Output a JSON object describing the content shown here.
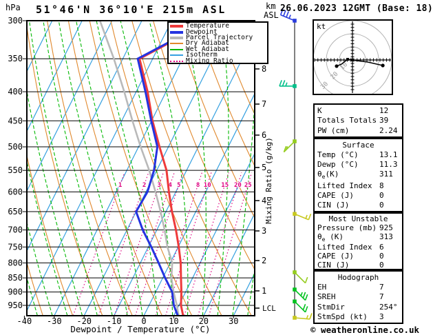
{
  "header": {
    "pressure_unit": "hPa",
    "title": "51°46'N 36°10'E 215m ASL",
    "alt_unit_line1": "km",
    "alt_unit_line2": "ASL",
    "date": "26.06.2023 12GMT (Base: 18)"
  },
  "colors": {
    "temperature": "#ee3a3a",
    "dewpoint": "#2433e0",
    "parcel": "#b9b9b9",
    "dry_adiabat": "#e0882c",
    "wet_adiabat": "#00b800",
    "isotherm": "#35a0e0",
    "mixing_ratio": "#dd0080",
    "grid": "#000000",
    "hodograph_rings": "#b0b0b0"
  },
  "legend": {
    "items": [
      {
        "label": "Temperature",
        "color": "#ee3a3a",
        "style": "thick"
      },
      {
        "label": "Dewpoint",
        "color": "#2433e0",
        "style": "thick"
      },
      {
        "label": "Parcel Trajectory",
        "color": "#b9b9b9",
        "style": "thick"
      },
      {
        "label": "Dry Adiabat",
        "color": "#e0882c",
        "style": "thin"
      },
      {
        "label": "Wet Adiabat",
        "color": "#00b800",
        "style": "thin"
      },
      {
        "label": "Isotherm",
        "color": "#35a0e0",
        "style": "thin"
      },
      {
        "label": "Mixing Ratio",
        "color": "#dd0080",
        "style": "dotted"
      }
    ]
  },
  "axes": {
    "pressure_ticks": [
      300,
      350,
      400,
      450,
      500,
      550,
      600,
      650,
      700,
      750,
      800,
      850,
      900,
      950
    ],
    "temp_ticks": [
      -40,
      -30,
      -20,
      -10,
      0,
      10,
      20,
      30
    ],
    "x_label": "Dewpoint / Temperature (°C)",
    "km_ticks": [
      8,
      7,
      6,
      5,
      4,
      3,
      2,
      1
    ],
    "lcl_label": "LCL",
    "mixing_ratio_axis_label": "Mixing Ratio (g/kg)"
  },
  "chart_data": {
    "type": "skewt-log-p",
    "title": "51°46'N 36°10'E 215m ASL",
    "pressure_range_hpa": [
      300,
      990
    ],
    "temp_axis_range_c": [
      -40,
      40
    ],
    "isotherm_step_c": 10,
    "mixing_ratio_lines_g_kg": [
      1,
      2,
      3,
      4,
      5,
      8,
      10,
      15,
      20,
      25
    ],
    "series": [
      {
        "name": "Temperature",
        "color": "#ee3a3a",
        "points_p_t": [
          [
            990,
            13.1
          ],
          [
            950,
            10.7
          ],
          [
            900,
            8.6
          ],
          [
            850,
            6.1
          ],
          [
            800,
            3.5
          ],
          [
            750,
            0.2
          ],
          [
            700,
            -3.6
          ],
          [
            650,
            -8.0
          ],
          [
            600,
            -12.3
          ],
          [
            550,
            -16.7
          ],
          [
            500,
            -23.0
          ],
          [
            450,
            -29.7
          ],
          [
            400,
            -36.2
          ],
          [
            350,
            -44.4
          ],
          [
            300,
            -26.8
          ]
        ]
      },
      {
        "name": "Dewpoint",
        "color": "#2433e0",
        "points_p_t": [
          [
            990,
            11.3
          ],
          [
            950,
            8.3
          ],
          [
            900,
            5.5
          ],
          [
            850,
            0.8
          ],
          [
            800,
            -3.9
          ],
          [
            750,
            -9.0
          ],
          [
            700,
            -14.7
          ],
          [
            650,
            -20.0
          ],
          [
            600,
            -19.5
          ],
          [
            550,
            -20.9
          ],
          [
            500,
            -23.7
          ],
          [
            450,
            -30.1
          ],
          [
            400,
            -36.9
          ],
          [
            350,
            -45.0
          ],
          [
            300,
            -27.3
          ]
        ]
      },
      {
        "name": "Parcel Trajectory",
        "color": "#b9b9b9",
        "points_p_t": [
          [
            990,
            11.6
          ],
          [
            950,
            9.3
          ],
          [
            900,
            6.0
          ],
          [
            850,
            2.9
          ],
          [
            800,
            0.7
          ],
          [
            750,
            -3.6
          ],
          [
            700,
            -7.4
          ],
          [
            650,
            -11.8
          ],
          [
            600,
            -16.8
          ],
          [
            550,
            -22.5
          ],
          [
            500,
            -29.3
          ],
          [
            450,
            -36.4
          ],
          [
            400,
            -44.0
          ],
          [
            350,
            -53.0
          ],
          [
            300,
            -64.0
          ]
        ]
      }
    ],
    "wind_barbs": [
      {
        "pressure": 300,
        "dir_deg": 292.5,
        "speed_kt": 35,
        "color": "#2a3cde"
      },
      {
        "pressure": 391,
        "dir_deg": 270.0,
        "speed_kt": 25,
        "color": "#00c08a"
      },
      {
        "pressure": 489,
        "dir_deg": 225.0,
        "speed_kt": 15,
        "color": "#95cc1e"
      },
      {
        "pressure": 656,
        "dir_deg": 112.5,
        "speed_kt": 15,
        "color": "#c8c81e"
      },
      {
        "pressure": 831,
        "dir_deg": 135.0,
        "speed_kt": 10,
        "color": "#95cc1e"
      },
      {
        "pressure": 891,
        "dir_deg": 135.0,
        "speed_kt": 25,
        "color": "#00c11e"
      },
      {
        "pressure": 935,
        "dir_deg": 135.0,
        "speed_kt": 20,
        "color": "#00c11e"
      },
      {
        "pressure": 1000,
        "dir_deg": 95.0,
        "speed_kt": 15,
        "color": "#c8c81e"
      }
    ]
  },
  "hodograph": {
    "unit": "kt",
    "rings_kt": [
      10,
      20,
      30
    ],
    "trace_kt_uv": [
      [
        23.2,
        -4.2
      ],
      [
        11.6,
        -1.6
      ],
      [
        3.2,
        -0.5
      ],
      [
        0,
        0
      ],
      [
        -3.7,
        0.5
      ],
      [
        -8.4,
        -3.2
      ],
      [
        -12.1,
        -4.7
      ]
    ]
  },
  "tables": [
    {
      "title": "",
      "rows": [
        [
          "K",
          "12"
        ],
        [
          "Totals Totals",
          "39"
        ],
        [
          "PW (cm)",
          "2.24"
        ]
      ]
    },
    {
      "title": "Surface",
      "rows": [
        [
          "Temp (°C)",
          "13.1"
        ],
        [
          "Dewp (°C)",
          "11.3"
        ],
        [
          "θe(K)",
          "311"
        ],
        [
          "Lifted Index",
          "8"
        ],
        [
          "CAPE (J)",
          "0"
        ],
        [
          "CIN (J)",
          "0"
        ]
      ]
    },
    {
      "title": "Most Unstable",
      "rows": [
        [
          "Pressure (mb)",
          "925"
        ],
        [
          "θe (K)",
          "313"
        ],
        [
          "Lifted Index",
          "6"
        ],
        [
          "CAPE (J)",
          "0"
        ],
        [
          "CIN (J)",
          "0"
        ]
      ]
    },
    {
      "title": "Hodograph",
      "rows": [
        [
          "EH",
          "7"
        ],
        [
          "SREH",
          "7"
        ],
        [
          "StmDir",
          "254°"
        ],
        [
          "StmSpd (kt)",
          "3"
        ]
      ]
    }
  ],
  "watermark": "© weatheronline.co.uk"
}
